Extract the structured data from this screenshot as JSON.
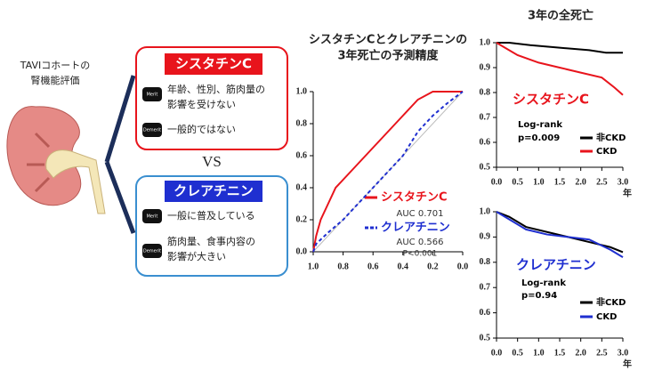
{
  "left": {
    "title_lines": [
      "TAVIコホートの",
      "腎機能評価"
    ]
  },
  "vs": "VS",
  "cystatin": {
    "title": "シスタチンC",
    "merit_icon": "Merit",
    "merit_lines": [
      "年齢、性別、筋肉量の",
      "影響を受けない"
    ],
    "demerit_icon": "Demerit",
    "demerit_lines": [
      "一般的ではない"
    ]
  },
  "creatinine": {
    "title": "クレアチニン",
    "merit_icon": "Merit",
    "merit_lines": [
      "一般に普及している"
    ],
    "demerit_icon": "Demerit",
    "demerit_lines": [
      "筋肉量、食事内容の",
      "影響が大きい"
    ]
  },
  "chart_data": [
    {
      "type": "line",
      "title_lines": [
        "シスタチンCとクレアチニンの",
        "3年死亡の予測精度"
      ],
      "xlim": [
        1,
        0
      ],
      "ylim": [
        0,
        1
      ],
      "xticks": [
        {
          "value": 1,
          "label": "1.0"
        },
        0.8,
        0.6,
        0.4,
        0.2,
        {
          "value": 0,
          "label": "0.0"
        }
      ],
      "yticks": [
        {
          "value": 0,
          "label": "0.0"
        },
        0.2,
        0.4,
        0.6,
        0.8,
        {
          "value": 1,
          "label": "1.0"
        }
      ],
      "series": [
        {
          "name": "シスタチンC",
          "color": "#e8141c",
          "dash": false,
          "x": [
            1,
            0.98,
            0.95,
            0.9,
            0.85,
            0.75,
            0.65,
            0.5,
            0.4,
            0.3,
            0.2,
            0
          ],
          "values": [
            0,
            0.1,
            0.2,
            0.3,
            0.4,
            0.5,
            0.6,
            0.75,
            0.85,
            0.95,
            1,
            1
          ]
        },
        {
          "name": "クレアチニン",
          "color": "#1f2fd0",
          "dash": true,
          "x": [
            1,
            0.98,
            0.9,
            0.8,
            0.7,
            0.6,
            0.5,
            0.4,
            0.3,
            0.2,
            0.1,
            0
          ],
          "values": [
            0,
            0.05,
            0.12,
            0.2,
            0.3,
            0.4,
            0.5,
            0.6,
            0.75,
            0.85,
            0.93,
            1
          ]
        }
      ],
      "annotations": [
        {
          "text": "AUC 0.701",
          "color": "#333333"
        },
        {
          "text": "AUC 0.566",
          "color": "#333333"
        },
        {
          "text": "P<0.001",
          "color": "#333333"
        }
      ]
    },
    {
      "type": "line",
      "title_lines": [
        "3年の全死亡"
      ],
      "x_unit": "年",
      "xlim": [
        0,
        3
      ],
      "ylim": [
        0.5,
        1
      ],
      "xticks": [
        {
          "value": 0,
          "label": "0.0"
        },
        0.5,
        {
          "value": 1,
          "label": "1.0"
        },
        1.5,
        {
          "value": 2,
          "label": "2.0"
        },
        2.5,
        {
          "value": 3,
          "label": "3.0"
        }
      ],
      "yticks": [
        0.5,
        0.6,
        0.7,
        0.8,
        0.9,
        {
          "value": 1,
          "label": "1.0"
        }
      ],
      "series": [
        {
          "name": "非CKD",
          "color": "#000000",
          "dash": false,
          "x": [
            0,
            0.3,
            0.8,
            1.5,
            2.2,
            2.6,
            3.0
          ],
          "values": [
            1,
            1,
            0.99,
            0.98,
            0.97,
            0.96,
            0.96
          ]
        },
        {
          "name": "CKD",
          "color": "#e8141c",
          "dash": false,
          "x": [
            0,
            0.2,
            0.5,
            1.0,
            1.5,
            2.0,
            2.5,
            2.8,
            3.0
          ],
          "values": [
            1,
            0.98,
            0.95,
            0.92,
            0.9,
            0.88,
            0.86,
            0.82,
            0.79
          ]
        }
      ],
      "annotations": [
        {
          "text": "シスタチンC",
          "color": "#e8141c"
        },
        {
          "text": "Log-rank",
          "color": "#000000"
        },
        {
          "text": "p=0.009",
          "color": "#000000"
        }
      ]
    },
    {
      "type": "line",
      "x_unit": "年",
      "xlim": [
        0,
        3
      ],
      "ylim": [
        0.5,
        1
      ],
      "xticks": [
        {
          "value": 0,
          "label": "0.0"
        },
        0.5,
        {
          "value": 1,
          "label": "1.0"
        },
        1.5,
        {
          "value": 2,
          "label": "2.0"
        },
        2.5,
        {
          "value": 3,
          "label": "3.0"
        }
      ],
      "yticks": [
        0.5,
        0.6,
        0.7,
        0.8,
        0.9,
        {
          "value": 1,
          "label": "1.0"
        }
      ],
      "series": [
        {
          "name": "非CKD",
          "color": "#000000",
          "dash": false,
          "x": [
            0,
            0.3,
            0.7,
            1.2,
            1.7,
            2.2,
            2.7,
            3.0
          ],
          "values": [
            1,
            0.98,
            0.94,
            0.92,
            0.9,
            0.88,
            0.86,
            0.84
          ]
        },
        {
          "name": "CKD",
          "color": "#1f2fd0",
          "dash": false,
          "x": [
            0,
            0.3,
            0.7,
            1.2,
            1.7,
            2.2,
            2.7,
            3.0
          ],
          "values": [
            1,
            0.97,
            0.93,
            0.91,
            0.9,
            0.89,
            0.85,
            0.82
          ]
        }
      ],
      "annotations": [
        {
          "text": "クレアチニン",
          "color": "#1f2fd0"
        },
        {
          "text": "Log-rank",
          "color": "#000000"
        },
        {
          "text": "p=0.94",
          "color": "#000000"
        }
      ]
    }
  ]
}
